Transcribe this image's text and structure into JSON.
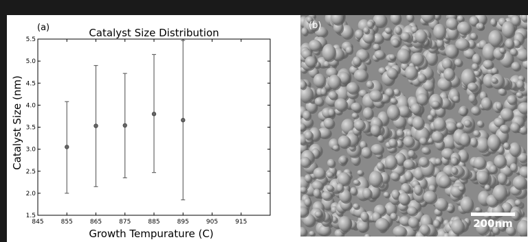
{
  "chart_data": {
    "type": "scatter",
    "panel_label": "(a)",
    "title": "Catalyst Size Distribution",
    "xlabel": "Growth Tempurature (C)",
    "ylabel": "Catalyst Size (nm)",
    "xlim": [
      845,
      925
    ],
    "ylim": [
      1.5,
      5.5
    ],
    "xticks": [
      "845",
      "855",
      "865",
      "875",
      "885",
      "895",
      "905",
      "915"
    ],
    "yticks": [
      "1.5",
      "2.0",
      "2.5",
      "3.0",
      "3.5",
      "4.0",
      "4.5",
      "5.0",
      "5.5"
    ],
    "grid": false,
    "points": [
      {
        "x": 855,
        "y": 3.05,
        "low": 2.0,
        "high": 4.08
      },
      {
        "x": 865,
        "y": 3.53,
        "low": 2.15,
        "high": 4.9
      },
      {
        "x": 875,
        "y": 3.54,
        "low": 2.35,
        "high": 4.72
      },
      {
        "x": 885,
        "y": 3.8,
        "low": 2.47,
        "high": 5.15
      },
      {
        "x": 895,
        "y": 3.66,
        "low": 1.85,
        "high": 5.47
      }
    ],
    "marker_color": "#666666"
  },
  "micrograph": {
    "panel_label": "(b)",
    "scale_bar_label": "200nm",
    "background_color": "#8a8a8a"
  }
}
